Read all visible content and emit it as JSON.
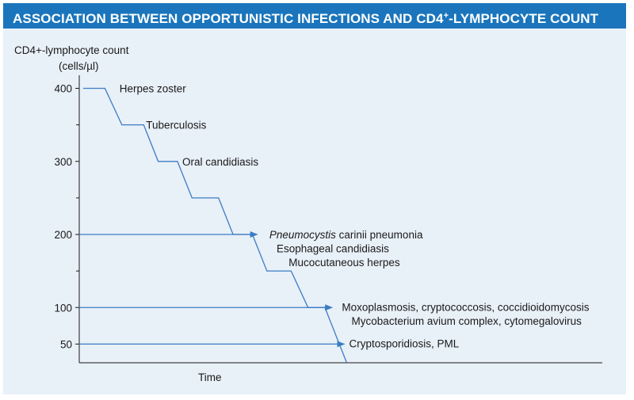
{
  "title": {
    "before": "ASSOCIATION BETWEEN OPPORTUNISTIC INFECTIONS AND CD4",
    "sup": "+",
    "after": "-LYMPHOCYTE COUNT"
  },
  "chart_data": {
    "type": "line",
    "ylabel_line1": "CD4+-lymphocyte count",
    "ylabel_line2": "(cells/µl)",
    "xlabel": "Time",
    "ylim": [
      0,
      410
    ],
    "yticks": [
      {
        "value": 400,
        "label": "400"
      },
      {
        "value": 300,
        "label": "300"
      },
      {
        "value": 200,
        "label": "200"
      },
      {
        "value": 100,
        "label": "100"
      },
      {
        "value": 50,
        "label": "50"
      }
    ],
    "minor_ticks": [
      350,
      250,
      150
    ],
    "decline_curve": [
      {
        "t": 0,
        "cd4": 400
      },
      {
        "t": 0.09,
        "cd4": 400
      },
      {
        "t": 0.16,
        "cd4": 350
      },
      {
        "t": 0.25,
        "cd4": 350
      },
      {
        "t": 0.31,
        "cd4": 300
      },
      {
        "t": 0.39,
        "cd4": 300
      },
      {
        "t": 0.45,
        "cd4": 250
      },
      {
        "t": 0.56,
        "cd4": 250
      },
      {
        "t": 0.62,
        "cd4": 200
      },
      {
        "t": 0.7,
        "cd4": 200
      },
      {
        "t": 0.76,
        "cd4": 150
      },
      {
        "t": 0.86,
        "cd4": 150
      },
      {
        "t": 0.93,
        "cd4": 100
      },
      {
        "t": 1.0,
        "cd4": 100
      },
      {
        "t": 1.09,
        "cd4": 0
      }
    ],
    "threshold_arrows": [
      {
        "cd4": 200,
        "t_end": 0.72
      },
      {
        "cd4": 100,
        "t_end": 1.03
      },
      {
        "cd4": 50,
        "t_end": 1.08
      }
    ],
    "annotations": [
      {
        "text": "Herpes zoster",
        "cd4": 400,
        "t": 0.15
      },
      {
        "text": "Tuberculosis",
        "cd4": 350,
        "t": 0.26
      },
      {
        "text": "Oral candidiasis",
        "cd4": 300,
        "t": 0.41
      },
      {
        "text_italic": "Pneumocystis",
        "text": " carinii pneumonia",
        "cd4": 200,
        "t": 0.77
      },
      {
        "text": "Esophageal candidiasis",
        "cd4": 181,
        "t": 0.8
      },
      {
        "text": "Mucocutaneous herpes",
        "cd4": 162,
        "t": 0.85
      },
      {
        "text": "Moxoplasmosis, cryptococcosis, coccidioidomycosis",
        "cd4": 101,
        "t": 1.07
      },
      {
        "text": "Mycobacterium avium complex, cytomegalovirus",
        "cd4": 82,
        "t": 1.11
      },
      {
        "text": "Cryptosporidiosis, PML",
        "cd4": 51,
        "t": 1.1
      }
    ],
    "colors": {
      "line": "#3b7cc4",
      "axis": "#1a1a1a",
      "title_bg": "#1a75bc",
      "panel_bg": "#e8f0f8"
    }
  }
}
